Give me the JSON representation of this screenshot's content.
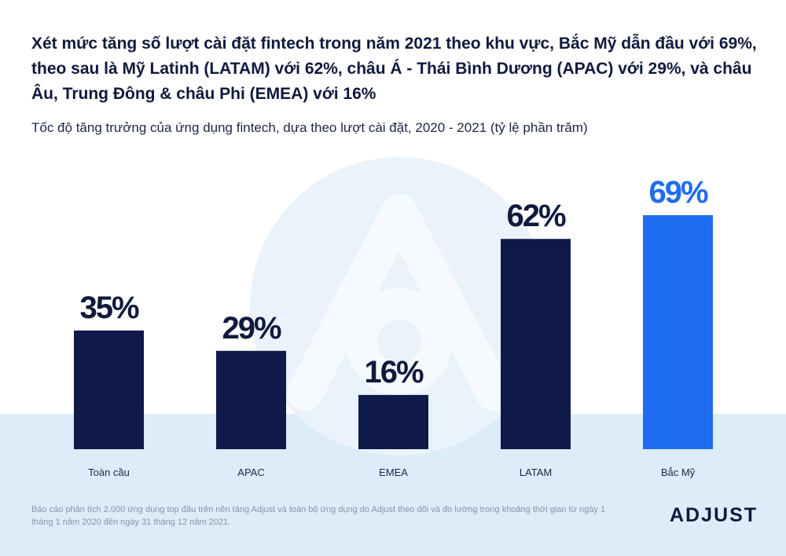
{
  "headline": "Xét mức tăng số lượt cài đặt fintech trong năm 2021 theo khu vực, Bắc Mỹ dẫn đầu với 69%, theo sau là Mỹ Latinh (LATAM) với 62%, châu Á - Thái Bình Dương (APAC) với 29%, và châu Âu, Trung Đông & châu Phi (EMEA) với 16%",
  "subtitle": "Tốc độ tăng trưởng của ứng dụng fintech, dựa theo lượt cài đặt, 2020 - 2021 (tỷ lệ phần trăm)",
  "footnote": "Báo cáo phân tích 2.000 ứng dụng top đầu trên nền tảng Adjust và toàn bộ ứng dụng do Adjust theo dõi và đo lường trong khoảng thời gian từ ngày 1 tháng 1 năm 2020 đến ngày 31 tháng 12 năm 2021.",
  "brand": "ADJUST",
  "colors": {
    "bar_default": "#0f1a4a",
    "bar_highlight": "#1f6cf0",
    "text_dark": "#0f1a3d"
  },
  "chart_data": {
    "type": "bar",
    "title": "Tốc độ tăng trưởng của ứng dụng fintech, dựa theo lượt cài đặt, 2020 - 2021 (tỷ lệ phần trăm)",
    "xlabel": "",
    "ylabel": "",
    "ylim": [
      0,
      69
    ],
    "categories": [
      "Toàn cầu",
      "APAC",
      "EMEA",
      "LATAM",
      "Bắc Mỹ"
    ],
    "values": [
      35,
      29,
      16,
      62,
      69
    ],
    "value_labels": [
      "35%",
      "29%",
      "16%",
      "62%",
      "69%"
    ],
    "highlight_index": 4,
    "grid": false
  }
}
